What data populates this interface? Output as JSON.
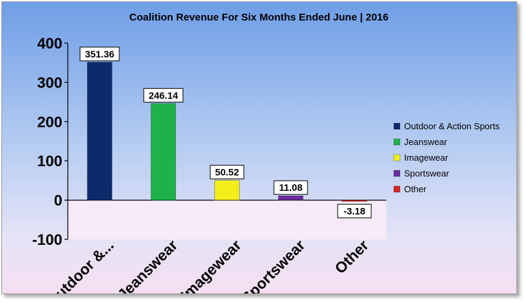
{
  "chart_data": {
    "type": "bar",
    "title": "Coalition Revenue For Six Months Ended June | 2016",
    "categories": [
      "Outdoor &...",
      "Jeanswear",
      "Imagewear",
      "Sportswear",
      "Other"
    ],
    "values": [
      351.36,
      246.14,
      50.52,
      11.08,
      -3.18
    ],
    "data_labels": [
      "351.36",
      "246.14",
      "50.52",
      "11.08",
      "-3.18"
    ],
    "colors": [
      "#0d2a6b",
      "#1fb24a",
      "#f2ee1a",
      "#6a2d9c",
      "#d42626"
    ],
    "ylim": [
      -100,
      400
    ],
    "yticks": [
      400,
      300,
      200,
      100,
      0,
      -100
    ],
    "xlabel": "",
    "ylabel": "",
    "grid": false,
    "legend_position": "right",
    "legend": [
      "Outdoor & Action Sports",
      "Jeanswear",
      "Imagewear",
      "Sportswear",
      "Other"
    ]
  }
}
